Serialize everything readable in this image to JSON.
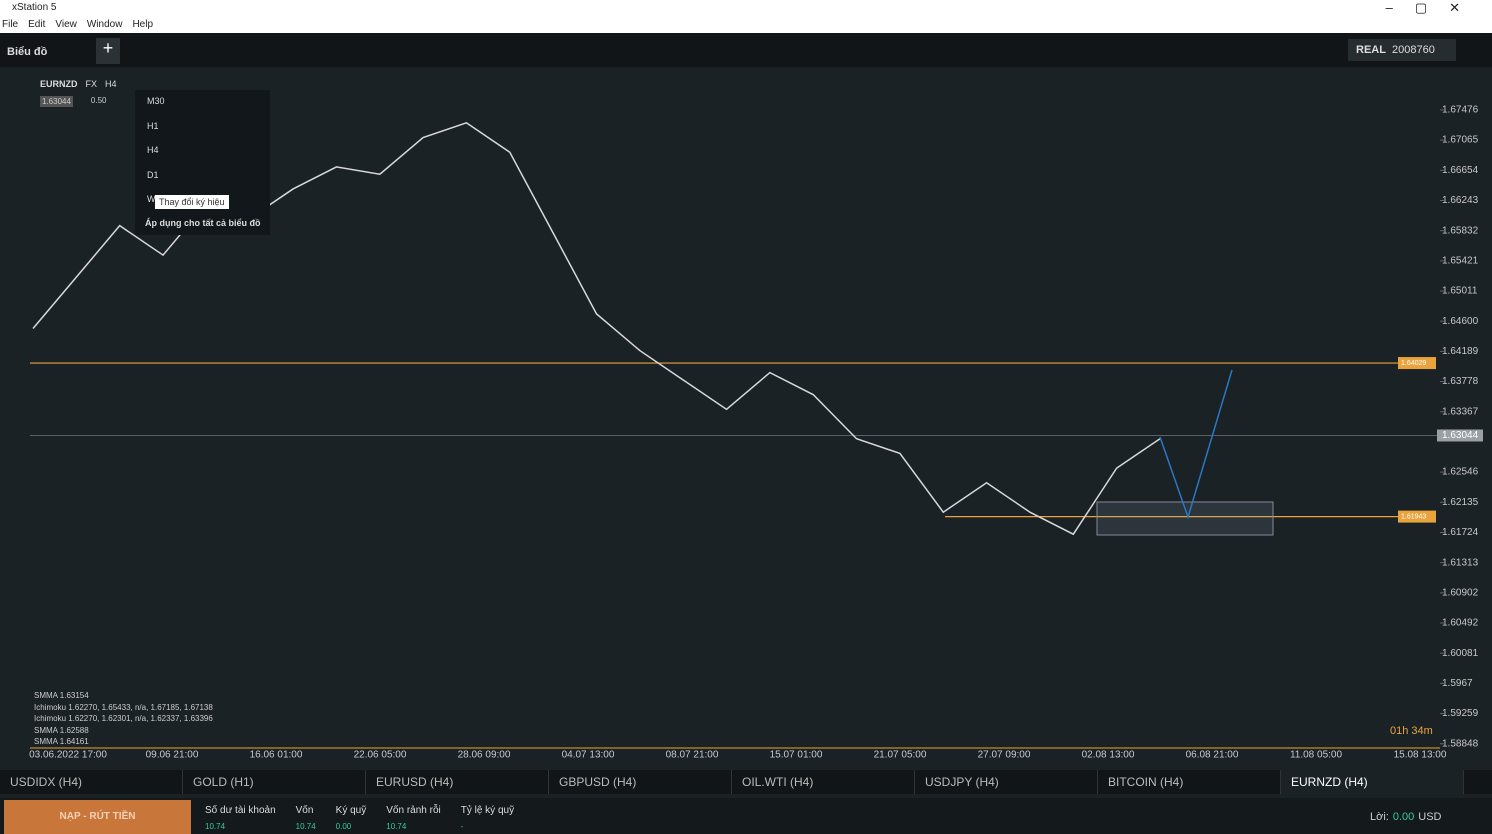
{
  "window": {
    "title": "xStation 5",
    "menu": [
      "File",
      "Edit",
      "View",
      "Window",
      "Help"
    ]
  },
  "toolbar": {
    "tab": "Biểu đồ",
    "account_type": "REAL",
    "account_number": "2008760"
  },
  "symbol": {
    "name": "EURNZD",
    "market": "FX",
    "timeframe": "H4",
    "price": "1.63044",
    "spread": "0.50"
  },
  "timeframe_menu": {
    "items": [
      "M30",
      "H1",
      "H4",
      "D1",
      "W"
    ],
    "apply_all": "Áp dụng cho tất cả biểu đồ",
    "tooltip": "Thay đổi ký hiệu"
  },
  "indicators": [
    "SMMA 1.63154",
    "Ichimoku 1.62270, 1.65433, n/a, 1.67185, 1.67138",
    "Ichimoku 1.62270, 1.62301, n/a, 1.62337, 1.63396",
    "SMMA 1.62588",
    "SMMA 1.64161"
  ],
  "chart_data": {
    "type": "line",
    "ylim": [
      1.5879,
      1.6806
    ],
    "yticks": [
      1.67476,
      1.67065,
      1.66654,
      1.66243,
      1.65832,
      1.65421,
      1.65011,
      {
        "value": 1.646,
        "label": "1.64600"
      },
      1.64189,
      1.63778,
      1.63367,
      1.62546,
      1.62135,
      1.61724,
      1.61313,
      1.60902,
      1.60492,
      1.60081,
      1.5967,
      1.59259,
      1.58848
    ],
    "xticks": [
      "03.06.2022 17:00",
      "09.06 21:00",
      "16.06 01:00",
      "22.06 05:00",
      "28.06 09:00",
      "04.07 13:00",
      "08.07 21:00",
      "15.07 01:00",
      "21.07 05:00",
      "27.07 09:00",
      "02.08 13:00",
      "06.08 21:00",
      "11.08 05:00",
      "15.08 13:00"
    ],
    "series": [
      {
        "name": "EURNZD",
        "color": "#d8d8d8",
        "values": [
          1.645,
          1.652,
          1.659,
          1.655,
          1.662,
          1.66,
          1.664,
          1.667,
          1.666,
          1.671,
          1.673,
          1.669,
          1.658,
          1.647,
          1.642,
          1.638,
          1.634,
          1.639,
          1.636,
          1.63,
          1.628,
          1.62,
          1.624,
          1.62,
          1.617,
          1.626,
          1.63
        ]
      }
    ],
    "levels": [
      {
        "value": 1.6403,
        "label": "1.64029",
        "color": "#e8a33c"
      },
      {
        "value": 1.6194,
        "label": "1.61943",
        "color": "#e8a33c"
      },
      {
        "value": 1.63044,
        "label": "1.63044",
        "color": "#9aa0a6"
      }
    ]
  },
  "countdown": "01h 34m",
  "tabs": [
    "USDIDX (H4)",
    "GOLD (H1)",
    "EURUSD (H4)",
    "GBPUSD (H4)",
    "OIL.WTI (H4)",
    "USDJPY (H4)",
    "BITCOIN (H4)",
    "EURNZD (H4)"
  ],
  "footer": {
    "button": "NẠP - RÚT TIỀN",
    "stats": [
      {
        "label": "Số dư tài khoản",
        "value": "10.74"
      },
      {
        "label": "Vốn",
        "value": "10.74"
      },
      {
        "label": "Ký quỹ",
        "value": "0.00"
      },
      {
        "label": "Vốn rảnh rỗi",
        "value": "10.74"
      },
      {
        "label": "Tỷ lệ ký quỹ",
        "value": "-"
      }
    ],
    "profit_label": "Lời:",
    "profit": "0.00",
    "currency": "USD"
  }
}
